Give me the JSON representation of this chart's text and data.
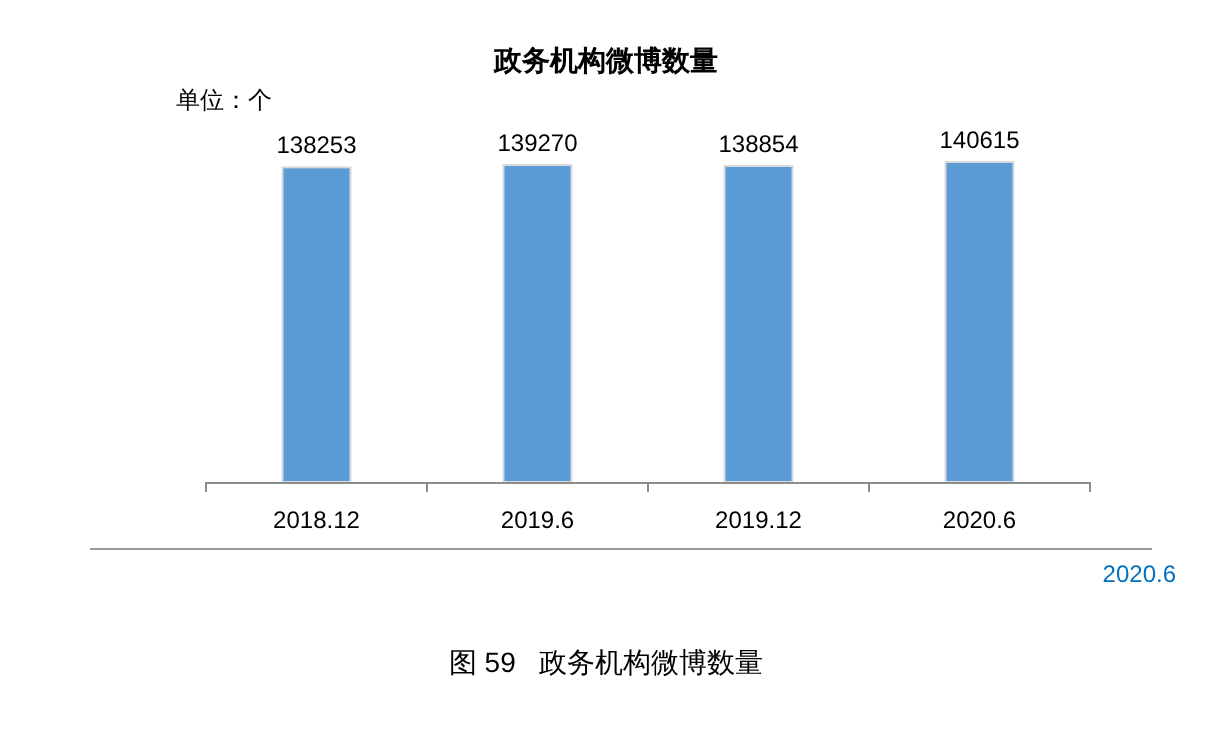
{
  "chart_data": {
    "type": "bar",
    "title": "政务机构微博数量",
    "categories": [
      "2018.12",
      "2019.6",
      "2019.12",
      "2020.6"
    ],
    "values": [
      138253,
      139270,
      138854,
      140615
    ],
    "color": "#5b9bd5",
    "data_labels": true,
    "annotations": [
      "单位：个",
      "2020.6",
      "图 59   政务机构微博数量"
    ]
  }
}
